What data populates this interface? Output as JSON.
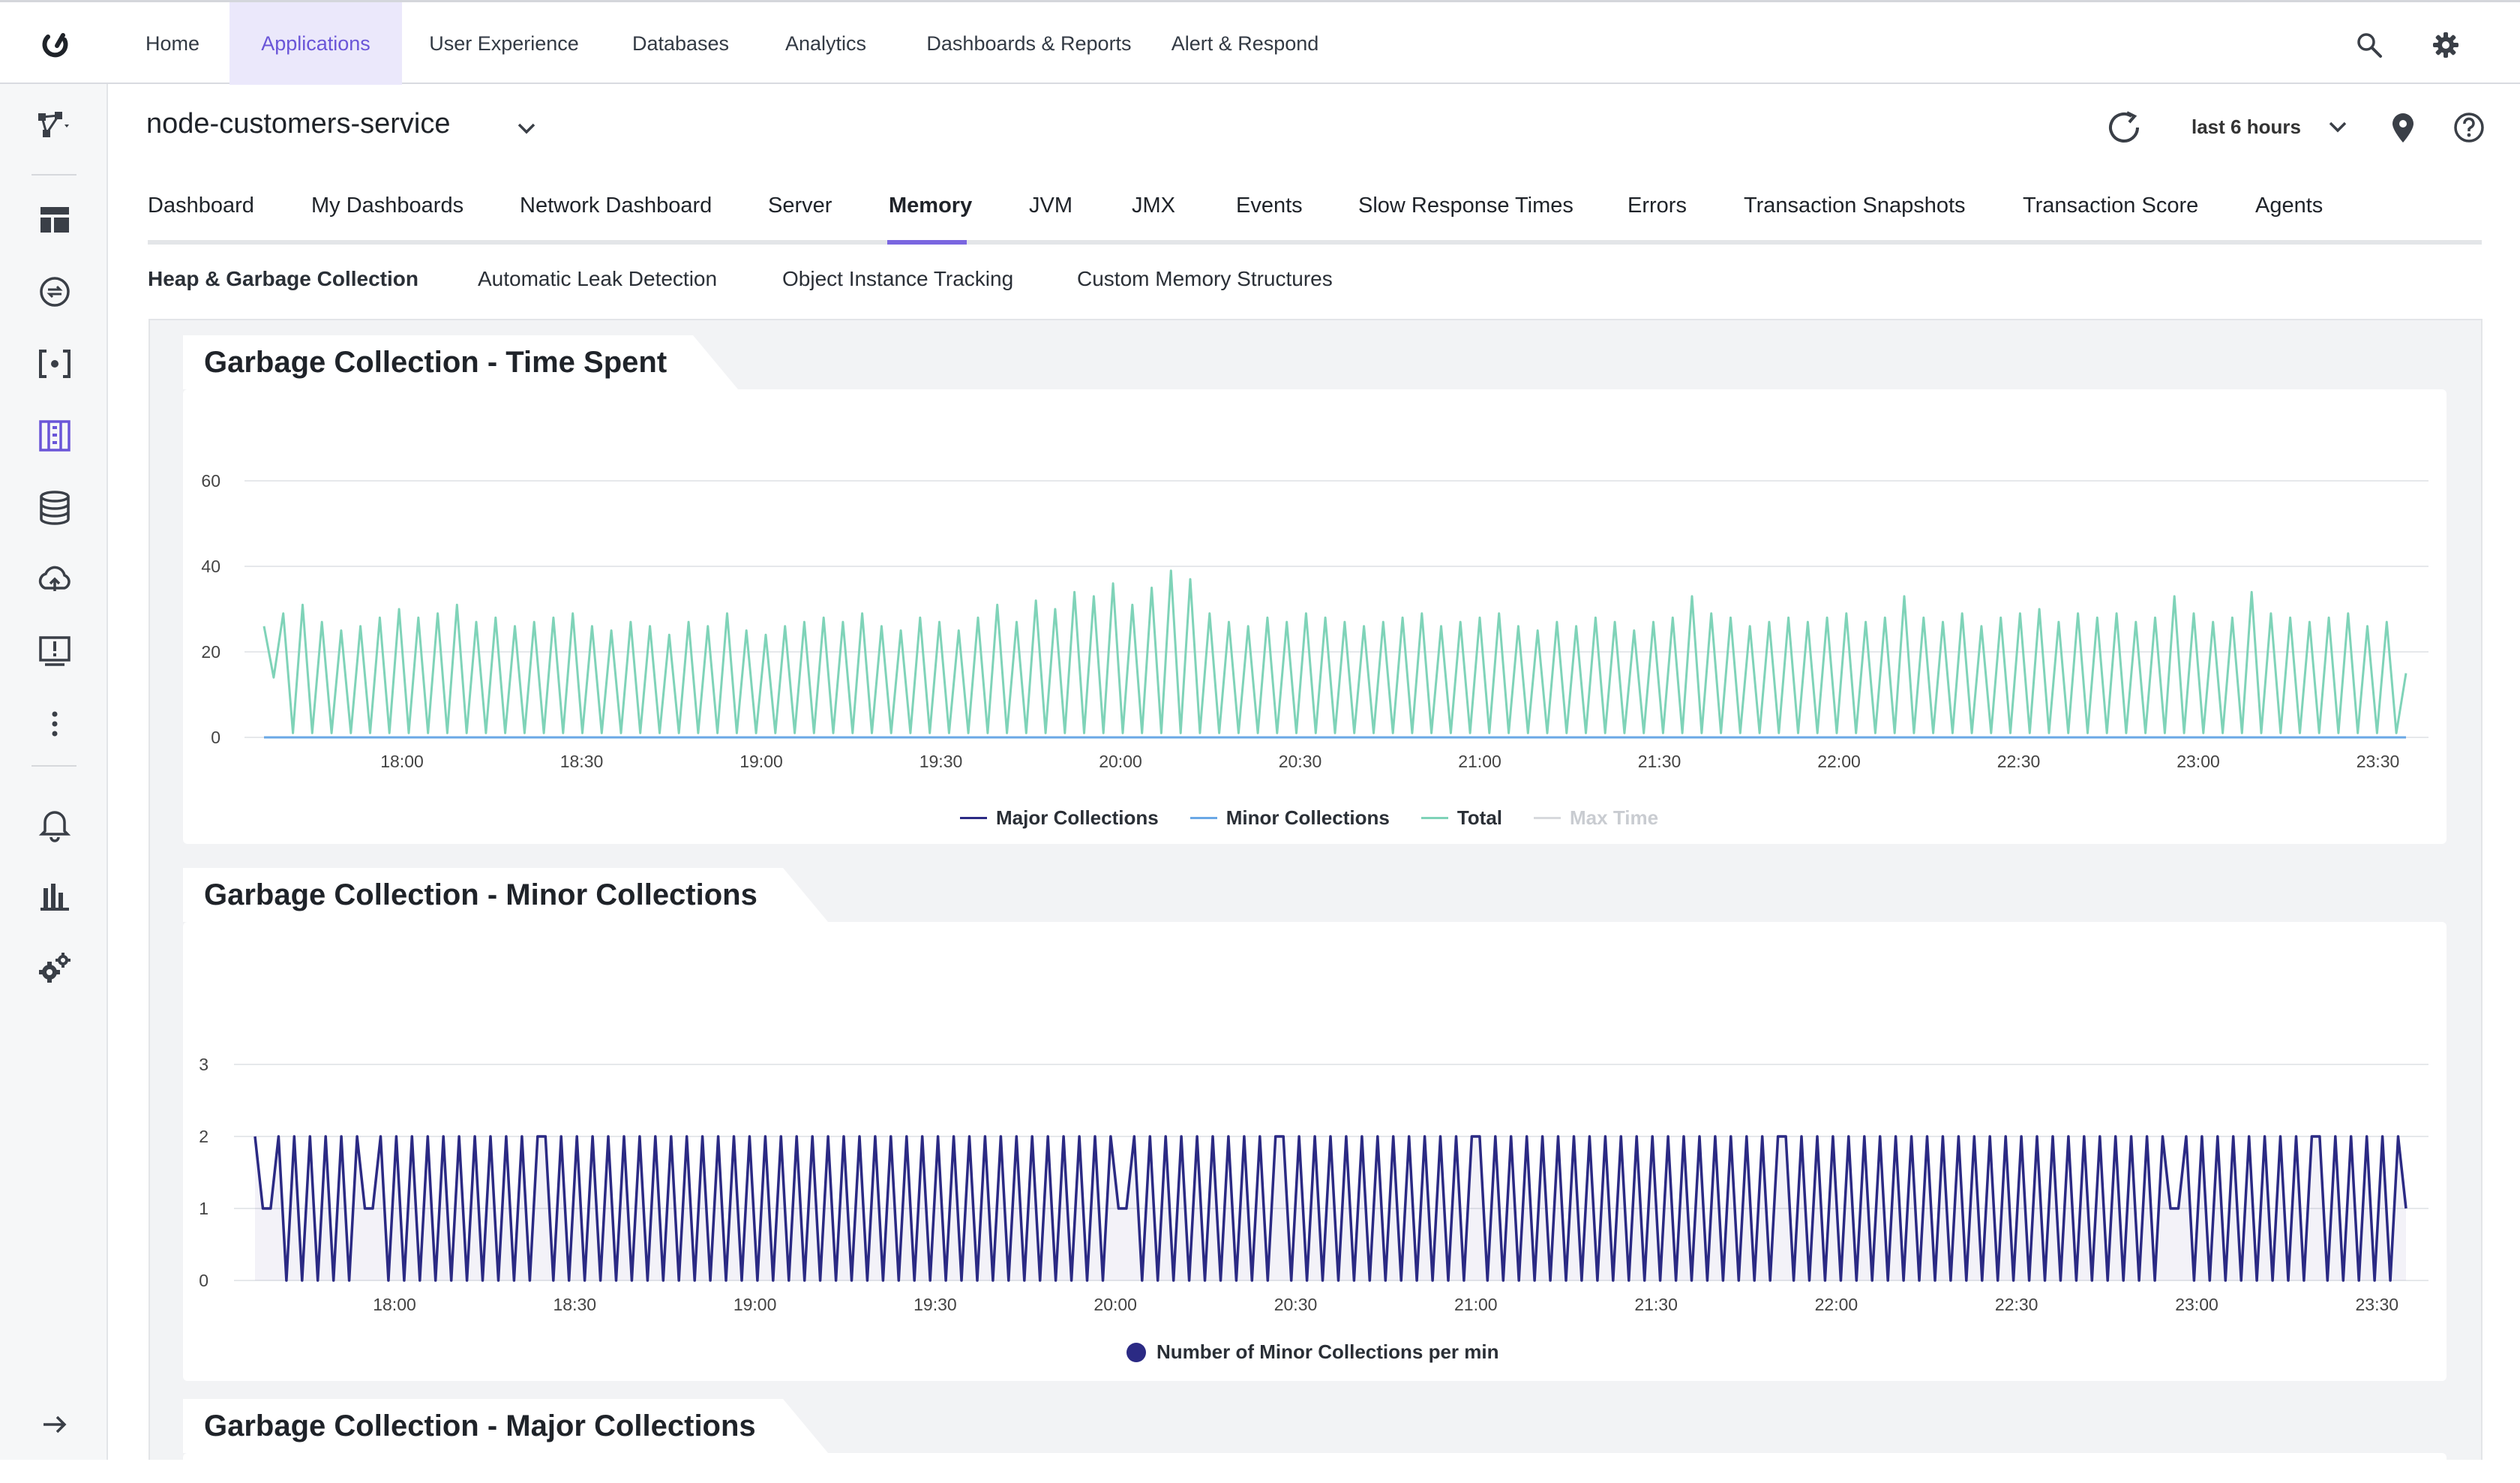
{
  "topnav": {
    "items": [
      "Home",
      "Applications",
      "User Experience",
      "Databases",
      "Analytics",
      "Dashboards & Reports",
      "Alert & Respond"
    ],
    "active_index": 1
  },
  "header": {
    "app_name": "node-customers-service",
    "time_range": "last 6 hours"
  },
  "tabs": {
    "items": [
      "Dashboard",
      "My Dashboards",
      "Network Dashboard",
      "Server",
      "Memory",
      "JVM",
      "JMX",
      "Events",
      "Slow Response Times",
      "Errors",
      "Transaction Snapshots",
      "Transaction Score",
      "Agents"
    ],
    "active_index": 4
  },
  "subtabs": {
    "items": [
      "Heap & Garbage Collection",
      "Automatic Leak Detection",
      "Object Instance Tracking",
      "Custom Memory Structures"
    ],
    "active_index": 0
  },
  "colors": {
    "accent": "#6a55d8",
    "major": "#2b2a84",
    "minor": "#6aa8e6",
    "total": "#7fd3b8",
    "max_time": "#c9ccd1"
  },
  "icons": {
    "rail": [
      "topology-icon",
      "dashboard-icon",
      "transactions-icon",
      "brackets-icon",
      "servers-icon",
      "database-icon",
      "cloud-upload-icon",
      "alert-monitor-icon",
      "more-icon",
      "alerts-bell-icon",
      "reports-chart-icon",
      "settings-gears-icon",
      "expand-arrow-icon"
    ],
    "top": [
      "search-icon",
      "settings-gear-icon"
    ],
    "header": [
      "chevron-down-icon",
      "refresh-icon",
      "location-pin-icon",
      "help-icon"
    ]
  },
  "chart_data": [
    {
      "type": "line",
      "title": "Garbage Collection - Time Spent",
      "x_ticks": [
        "18:00",
        "18:30",
        "19:00",
        "19:30",
        "20:00",
        "20:30",
        "21:00",
        "21:30",
        "22:00",
        "22:30",
        "23:00",
        "23:30"
      ],
      "y_ticks": [
        0,
        20,
        40,
        60
      ],
      "ylim": [
        0,
        60
      ],
      "series": [
        {
          "name": "Major Collections",
          "values": [
            0
          ]
        },
        {
          "name": "Minor Collections",
          "values": [
            0
          ]
        },
        {
          "name": "Total",
          "values": [
            26,
            14,
            29,
            1,
            31,
            1,
            27,
            1,
            25,
            1,
            26,
            1,
            28,
            1,
            30,
            1,
            28,
            1,
            29,
            1,
            31,
            1,
            27,
            1,
            28,
            1,
            26,
            1,
            27,
            1,
            28,
            1,
            29,
            1,
            26,
            1,
            25,
            1,
            27,
            1,
            26,
            1,
            24,
            1,
            27,
            1,
            26,
            1,
            29,
            1,
            25,
            1,
            24,
            1,
            26,
            1,
            27,
            1,
            28,
            1,
            27,
            1,
            29,
            1,
            26,
            1,
            25,
            1,
            28,
            1,
            27,
            1,
            25,
            1,
            28,
            1,
            31,
            1,
            27,
            1,
            32,
            1,
            30,
            1,
            34,
            1,
            33,
            1,
            36,
            1,
            31,
            1,
            35,
            1,
            39,
            1,
            37,
            1,
            29,
            1,
            27,
            1,
            26,
            1,
            28,
            1,
            27,
            1,
            29,
            1,
            28,
            1,
            27,
            1,
            26,
            1,
            27,
            1,
            28,
            1,
            29,
            1,
            26,
            1,
            27,
            1,
            28,
            1,
            29,
            1,
            26,
            1,
            25,
            1,
            27,
            1,
            26,
            1,
            28,
            1,
            27,
            1,
            25,
            1,
            27,
            1,
            28,
            1,
            33,
            1,
            29,
            1,
            28,
            1,
            26,
            1,
            27,
            1,
            28,
            1,
            27,
            1,
            28,
            1,
            29,
            1,
            27,
            1,
            28,
            1,
            33,
            1,
            28,
            1,
            27,
            1,
            29,
            1,
            26,
            1,
            28,
            1,
            29,
            1,
            30,
            1,
            27,
            1,
            29,
            1,
            28,
            1,
            29,
            1,
            27,
            1,
            28,
            1,
            33,
            1,
            29,
            1,
            27,
            1,
            28,
            1,
            34,
            1,
            29,
            1,
            28,
            1,
            27,
            1,
            28,
            1,
            29,
            1,
            26,
            1,
            27,
            1,
            15
          ]
        },
        {
          "name": "Max Time",
          "values": []
        }
      ]
    },
    {
      "type": "line",
      "title": "Garbage Collection - Minor Collections",
      "x_ticks": [
        "18:00",
        "18:30",
        "19:00",
        "19:30",
        "20:00",
        "20:30",
        "21:00",
        "21:30",
        "22:00",
        "22:30",
        "23:00",
        "23:30"
      ],
      "y_ticks": [
        0,
        1,
        2,
        3
      ],
      "ylim": [
        0,
        3
      ],
      "series": [
        {
          "name": "Number of Minor Collections per min",
          "values": [
            2,
            1,
            1,
            2,
            0,
            2,
            0,
            2,
            0,
            2,
            0,
            2,
            0,
            2,
            1,
            1,
            2,
            0,
            2,
            0,
            2,
            0,
            2,
            0,
            2,
            0,
            2,
            0,
            2,
            0,
            2,
            0,
            2,
            0,
            2,
            0,
            2,
            2,
            0,
            2,
            0,
            2,
            0,
            2,
            0,
            2,
            0,
            2,
            0,
            2,
            0,
            2,
            0,
            2,
            0,
            2,
            0,
            2,
            0,
            2,
            0,
            2,
            0,
            2,
            0,
            2,
            0,
            2,
            0,
            2,
            0,
            2,
            0,
            2,
            0,
            2,
            0,
            2,
            0,
            2,
            0,
            2,
            0,
            2,
            0,
            2,
            0,
            2,
            0,
            2,
            0,
            2,
            0,
            2,
            0,
            2,
            0,
            2,
            0,
            2,
            0,
            2,
            0,
            2,
            0,
            2,
            0,
            2,
            0,
            2,
            1,
            1,
            2,
            0,
            2,
            0,
            2,
            0,
            2,
            0,
            2,
            0,
            2,
            0,
            2,
            0,
            2,
            0,
            2,
            0,
            2,
            2,
            0,
            2,
            0,
            2,
            0,
            2,
            0,
            2,
            0,
            2,
            0,
            2,
            0,
            2,
            0,
            2,
            0,
            2,
            0,
            2,
            0,
            2,
            0,
            2,
            2,
            0,
            2,
            0,
            2,
            0,
            2,
            0,
            2,
            0,
            2,
            0,
            2,
            0,
            2,
            0,
            2,
            0,
            2,
            0,
            2,
            0,
            2,
            0,
            2,
            0,
            2,
            0,
            2,
            0,
            2,
            0,
            2,
            0,
            2,
            0,
            2,
            0,
            2,
            2,
            0,
            2,
            0,
            2,
            0,
            2,
            0,
            2,
            0,
            2,
            0,
            2,
            0,
            2,
            0,
            2,
            0,
            2,
            0,
            2,
            0,
            2,
            0,
            2,
            0,
            2,
            0,
            2,
            0,
            2,
            0,
            2,
            0,
            2,
            0,
            2,
            0,
            2,
            0,
            2,
            0,
            2,
            0,
            2,
            0,
            2,
            0,
            2,
            1,
            1,
            2,
            0,
            2,
            0,
            2,
            0,
            2,
            0,
            2,
            0,
            2,
            0,
            2,
            0,
            2,
            0,
            2,
            2,
            0,
            2,
            0,
            2,
            0,
            2,
            0,
            2,
            0,
            2,
            1
          ]
        }
      ]
    },
    {
      "type": "line",
      "title": "Garbage Collection - Major Collections"
    }
  ]
}
